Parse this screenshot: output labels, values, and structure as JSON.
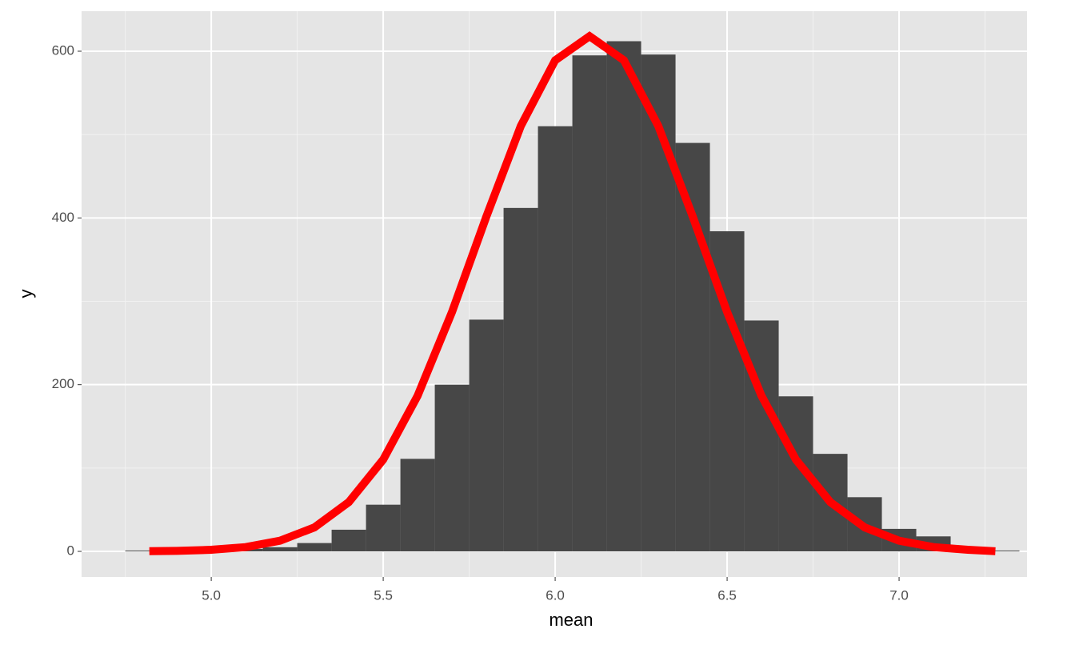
{
  "chart_data": {
    "type": "histogram",
    "xlabel": "mean",
    "ylabel": "y",
    "bins": [
      4.75,
      4.85,
      4.95,
      5.05,
      5.15,
      5.25,
      5.35,
      5.45,
      5.55,
      5.65,
      5.75,
      5.85,
      5.95,
      6.05,
      6.15,
      6.25,
      6.35,
      6.45,
      6.55,
      6.65,
      6.75,
      6.85,
      6.95,
      7.05,
      7.15,
      7.25,
      7.35
    ],
    "counts": [
      1,
      1,
      2,
      3,
      5,
      10,
      26,
      56,
      111,
      200,
      278,
      412,
      510,
      595,
      612,
      596,
      490,
      384,
      277,
      186,
      117,
      65,
      27,
      18,
      3,
      1
    ],
    "color": "#474747",
    "overlay": {
      "type": "line",
      "color": "#ff0000",
      "x": [
        4.82,
        4.9,
        5.0,
        5.1,
        5.2,
        5.3,
        5.4,
        5.5,
        5.6,
        5.7,
        5.8,
        5.9,
        6.0,
        6.1,
        6.2,
        6.3,
        6.4,
        6.5,
        6.6,
        6.7,
        6.8,
        6.9,
        7.0,
        7.1,
        7.2,
        7.28
      ],
      "values": [
        0.2,
        0.6,
        1.9,
        5.1,
        12.8,
        28.8,
        59.1,
        110.1,
        186.6,
        287.1,
        401.7,
        510.2,
        589.1,
        618,
        589.1,
        510.2,
        401.7,
        287.1,
        186.6,
        110.1,
        59.1,
        28.8,
        12.8,
        5.1,
        1.9,
        0.2
      ]
    },
    "xlim": [
      4.623,
      7.372
    ],
    "ylim": [
      -30.7,
      648
    ],
    "xticks": [
      {
        "value": 5.0,
        "label": "5.0"
      },
      5.5,
      {
        "value": 6.0,
        "label": "6.0"
      },
      6.5,
      {
        "value": 7.0,
        "label": "7.0"
      }
    ],
    "yticks": [
      0,
      200,
      400,
      600
    ],
    "grid": true,
    "minor_grid": true
  }
}
